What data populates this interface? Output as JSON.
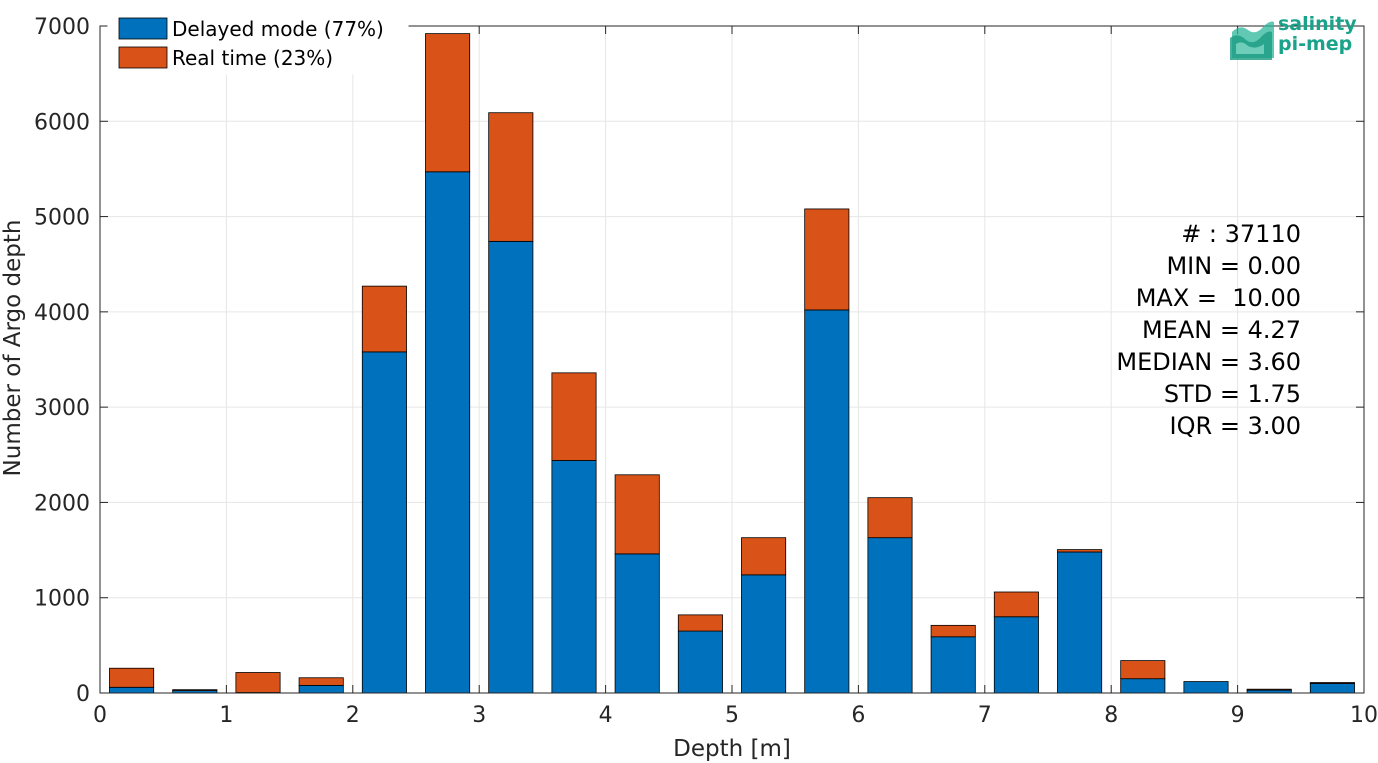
{
  "chart_data": {
    "type": "bar",
    "stacked": true,
    "bin_width": 0.5,
    "bin_centers": [
      0.25,
      0.75,
      1.25,
      1.75,
      2.25,
      2.75,
      3.25,
      3.75,
      4.25,
      4.75,
      5.25,
      5.75,
      6.25,
      6.75,
      7.25,
      7.75,
      8.25,
      8.75,
      9.25,
      9.75
    ],
    "series": [
      {
        "name": "Delayed mode (77%)",
        "color": "#0072BD",
        "values": [
          60,
          25,
          5,
          80,
          3580,
          5470,
          4740,
          2440,
          1460,
          650,
          1240,
          4020,
          1630,
          590,
          800,
          1480,
          150,
          120,
          30,
          100
        ]
      },
      {
        "name": "Real time (23%)",
        "color": "#D95319",
        "values": [
          200,
          10,
          210,
          80,
          690,
          1450,
          1350,
          920,
          830,
          170,
          390,
          1060,
          420,
          120,
          260,
          25,
          190,
          0,
          10,
          10
        ]
      }
    ],
    "xlabel": "Depth [m]",
    "ylabel": "Number of Argo depth",
    "xlim": [
      0,
      10
    ],
    "ylim": [
      0,
      7000
    ],
    "xticks": [
      "0",
      "1",
      "2",
      "3",
      "4",
      "5",
      "6",
      "7",
      "8",
      "9",
      "10"
    ],
    "yticks": [
      "0",
      "1000",
      "2000",
      "3000",
      "4000",
      "5000",
      "6000",
      "7000"
    ],
    "grid": true,
    "legend_position": "top-left"
  },
  "stats": {
    "count": "# : 37110",
    "min": "MIN = 0.00",
    "max": "MAX =  10.00",
    "mean": "MEAN = 4.27",
    "median": "MEDIAN = 3.60",
    "std": "STD = 1.75",
    "iqr": "IQR = 3.00"
  },
  "logo": {
    "line1": "salinity",
    "line2": "pi-mep",
    "color": "#1aa38a"
  }
}
